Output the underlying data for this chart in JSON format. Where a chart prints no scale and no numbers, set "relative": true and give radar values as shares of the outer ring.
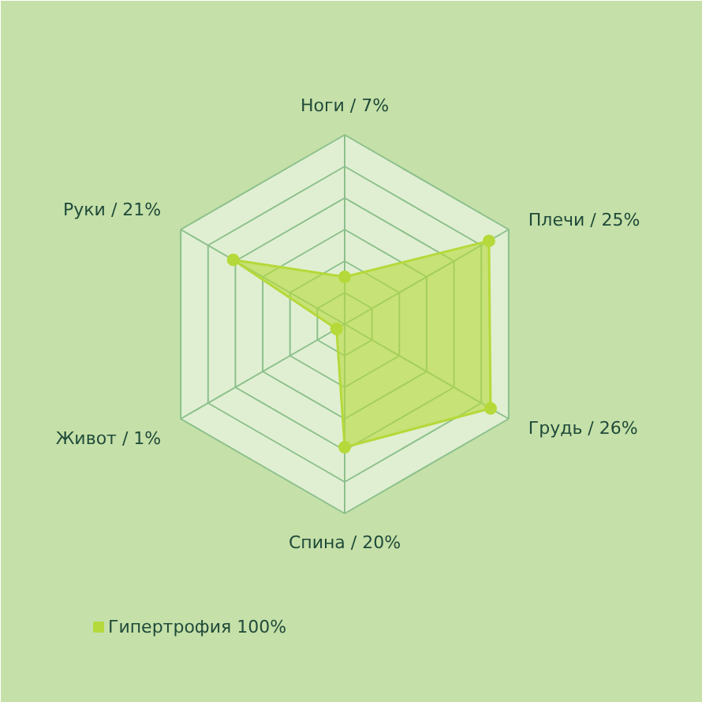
{
  "chart_data": {
    "type": "radar",
    "relative": true,
    "categories": [
      "Ноги / 7%",
      "Плечи / 25%",
      "Грудь / 26%",
      "Спина / 20%",
      "Живот / 1%",
      "Руки / 21%"
    ],
    "series": [
      {
        "name": "Гипертрофия 100%",
        "color": "#b5d93a",
        "values": [
          0.25,
          0.88,
          0.89,
          0.65,
          0.05,
          0.68
        ]
      }
    ],
    "grid": true,
    "legend": "bottom",
    "marker": "circle"
  }
}
